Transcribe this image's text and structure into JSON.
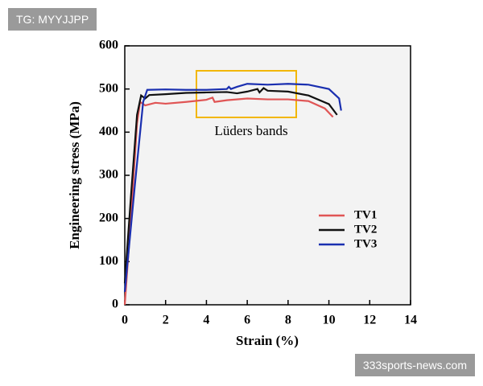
{
  "watermarks": {
    "top_left": "TG: MYYJJPP",
    "bottom_right": "333sports-news.com"
  },
  "chart_data": {
    "type": "line",
    "xlabel": "Strain (%)",
    "ylabel": "Engineering stress (MPa)",
    "annotation": "Lüders bands",
    "xlim": [
      0,
      14
    ],
    "xticks": [
      0,
      2,
      4,
      6,
      8,
      10,
      12,
      14
    ],
    "ylim": [
      0,
      600
    ],
    "yticks": [
      0,
      100,
      200,
      300,
      400,
      500,
      600
    ],
    "legend": "right",
    "series": [
      {
        "name": "TV1",
        "color": "#e05555",
        "x": [
          0,
          0.3,
          0.6,
          0.75,
          1,
          1.5,
          2,
          3,
          4,
          4.3,
          4.4,
          5,
          6,
          7,
          8,
          9,
          9.8,
          10.2
        ],
        "values": [
          0,
          200,
          420,
          470,
          462,
          468,
          466,
          470,
          475,
          480,
          470,
          474,
          478,
          476,
          476,
          472,
          455,
          435
        ]
      },
      {
        "name": "TV2",
        "color": "#111111",
        "x": [
          0,
          0.3,
          0.6,
          0.8,
          1,
          1.2,
          2,
          3,
          4,
          5,
          5.5,
          6,
          6.5,
          6.6,
          6.8,
          7,
          8,
          9,
          10,
          10.4
        ],
        "values": [
          50,
          250,
          440,
          485,
          478,
          486,
          488,
          491,
          492,
          493,
          490,
          494,
          500,
          492,
          502,
          496,
          494,
          485,
          465,
          440
        ]
      },
      {
        "name": "TV3",
        "color": "#1a2fb0",
        "x": [
          0,
          0.5,
          0.9,
          1.1,
          2,
          3,
          4,
          5,
          5.1,
          5.2,
          5.5,
          6,
          7,
          8,
          9,
          10,
          10.5,
          10.6
        ],
        "values": [
          30,
          280,
          470,
          498,
          499,
          498,
          498,
          500,
          505,
          500,
          505,
          512,
          510,
          512,
          510,
          500,
          478,
          450
        ]
      }
    ]
  }
}
